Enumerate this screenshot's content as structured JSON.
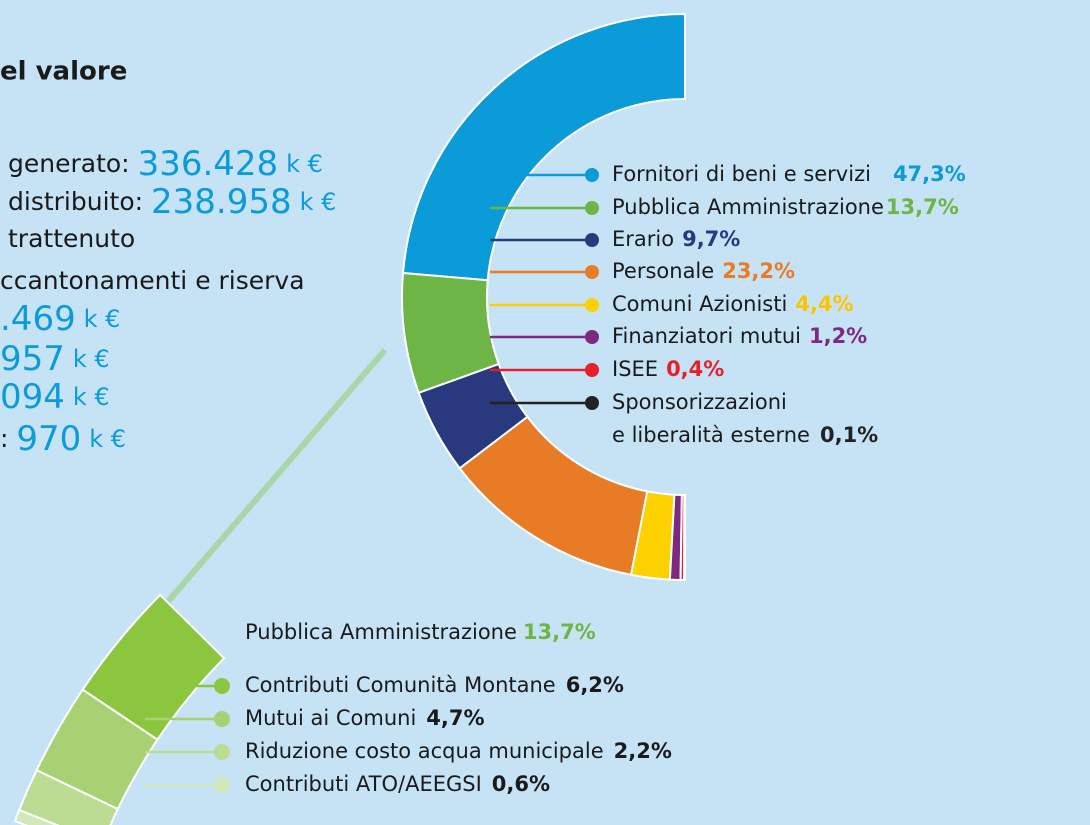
{
  "left_text": {
    "heading": "el valore",
    "rows": [
      {
        "label": "generato:",
        "value": "336.428",
        "unit": "k €"
      },
      {
        "label": "distribuito:",
        "value": "238.958",
        "unit": "k €"
      },
      {
        "label": "trattenuto"
      },
      {
        "label": "ccantonamenti e riserva"
      },
      {
        "value": ".469",
        "unit": "k €"
      },
      {
        "value": "957",
        "unit": "k €"
      },
      {
        "value": "094",
        "unit": "k €"
      },
      {
        "label": ":",
        "value": "970",
        "unit": "k €"
      }
    ]
  },
  "chart_data": [
    {
      "type": "donut",
      "categories": [
        "Fornitori di beni e servizi",
        "Pubblica Amministrazione",
        "Erario",
        "Personale",
        "Comuni Azionisti",
        "Finanziatori mutui",
        "ISEE",
        "Sponsorizzazioni\ne liberalità esterne"
      ],
      "values": [
        47.3,
        13.7,
        9.7,
        23.2,
        4.4,
        1.2,
        0.4,
        0.1
      ],
      "value_labels": [
        "47,3%",
        "13,7%",
        "9,7%",
        "23,2%",
        "4,4%",
        "1,2%",
        "0,4%",
        "0,1%"
      ],
      "colors": [
        "#0a9bd8",
        "#6db545",
        "#283a7d",
        "#e87b26",
        "#fdd000",
        "#7b2a80",
        "#e5202b",
        "#222222"
      ],
      "label_colors": [
        "#0a9bd8",
        "#6db545",
        "#283a7d",
        "#e87b26",
        "#fdc300",
        "#7b2a80",
        "#e5202b",
        "#222222"
      ]
    },
    {
      "type": "donut-detail",
      "title": "Pubblica Amministrazione",
      "total_label": "13,7%",
      "categories": [
        "Contributi Comunità Montane",
        "Mutui ai Comuni",
        "Riduzione costo acqua municipale",
        "Contributi ATO/AEEGSI"
      ],
      "values": [
        6.2,
        4.7,
        2.2,
        0.6
      ],
      "value_labels": [
        "6,2%",
        "4,7%",
        "2,2%",
        "0,6%"
      ],
      "colors": [
        "#8cc63f",
        "#a7d173",
        "#bcdc94",
        "#d3e8b8"
      ]
    }
  ]
}
